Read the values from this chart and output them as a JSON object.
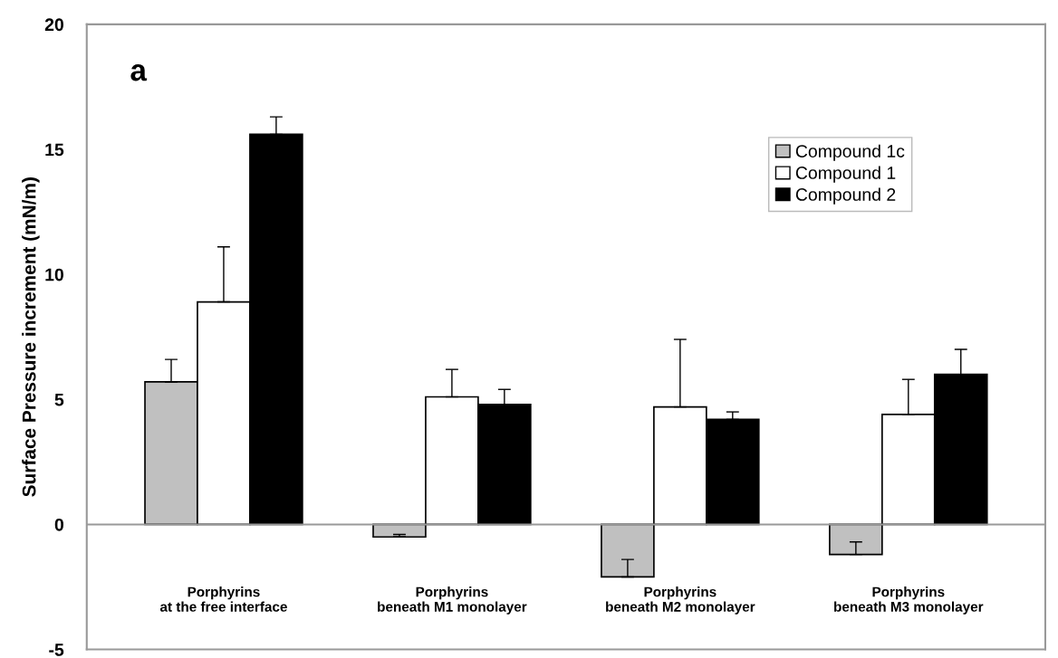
{
  "chart_data": {
    "type": "bar",
    "ylabel": "Surface Pressure increment (mN/m)",
    "categories": [
      "Porphyrins\nat the free interface",
      "Porphyrins\nbeneath M1 monolayer",
      "Porphyrins\nbeneath M2 monolayer",
      "Porphyrins\nbeneath M3 monolayer"
    ],
    "series": [
      {
        "name": "Compound 1c",
        "color": "#c0c0c0",
        "values": [
          5.7,
          -0.5,
          -2.1,
          -1.2
        ],
        "errors": [
          [
            5.7,
            6.6
          ],
          [
            -0.5,
            -0.4
          ],
          [
            -2.1,
            -1.4
          ],
          [
            -1.2,
            -0.7
          ]
        ]
      },
      {
        "name": "Compound 1",
        "color": "#ffffff",
        "values": [
          8.9,
          5.1,
          4.7,
          4.4
        ],
        "errors": [
          [
            8.9,
            11.1
          ],
          [
            5.1,
            6.2
          ],
          [
            4.7,
            7.4
          ],
          [
            4.4,
            5.8
          ]
        ]
      },
      {
        "name": "Compound 2",
        "color": "#000000",
        "values": [
          15.6,
          4.8,
          4.2,
          6.0
        ],
        "errors": [
          [
            15.6,
            16.3
          ],
          [
            4.8,
            5.4
          ],
          [
            4.2,
            4.5
          ],
          [
            6.0,
            7.0
          ]
        ]
      }
    ],
    "ylim": [
      -5,
      20
    ],
    "yticks": [
      -5,
      0,
      5,
      10,
      15,
      20
    ],
    "grid": false,
    "legend": "right",
    "ref_lines": [
      {
        "axis": "y",
        "value": 0,
        "color": "#999999"
      }
    ],
    "annotations": [
      "a"
    ]
  }
}
